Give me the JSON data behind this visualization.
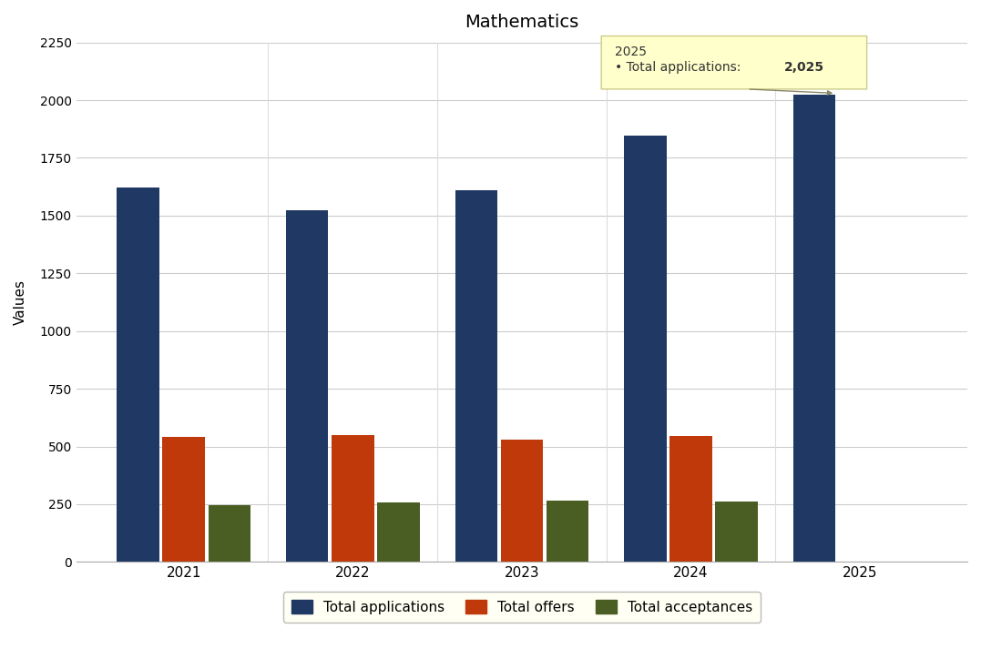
{
  "title": "Mathematics",
  "years": [
    "2021",
    "2022",
    "2023",
    "2024",
    "2025"
  ],
  "total_applications": [
    1620,
    1525,
    1610,
    1845,
    2025
  ],
  "total_offers": [
    540,
    550,
    530,
    545,
    0
  ],
  "total_acceptances": [
    245,
    258,
    265,
    263,
    0
  ],
  "bar_colors": {
    "applications": "#1F3864",
    "offers": "#C0390B",
    "acceptances": "#4A5E23"
  },
  "ylabel": "Values",
  "ylim": [
    0,
    2250
  ],
  "yticks": [
    0,
    250,
    500,
    750,
    1000,
    1250,
    1500,
    1750,
    2000,
    2250
  ],
  "legend_labels": [
    "Total applications",
    "Total offers",
    "Total acceptances"
  ],
  "tooltip_year": "2025",
  "tooltip_prefix": "• Total applications: ",
  "tooltip_value": "2,025",
  "background_color": "#FFFFFF",
  "plot_bg_color": "#FFFFFF",
  "grid_color": "#CCCCCC"
}
